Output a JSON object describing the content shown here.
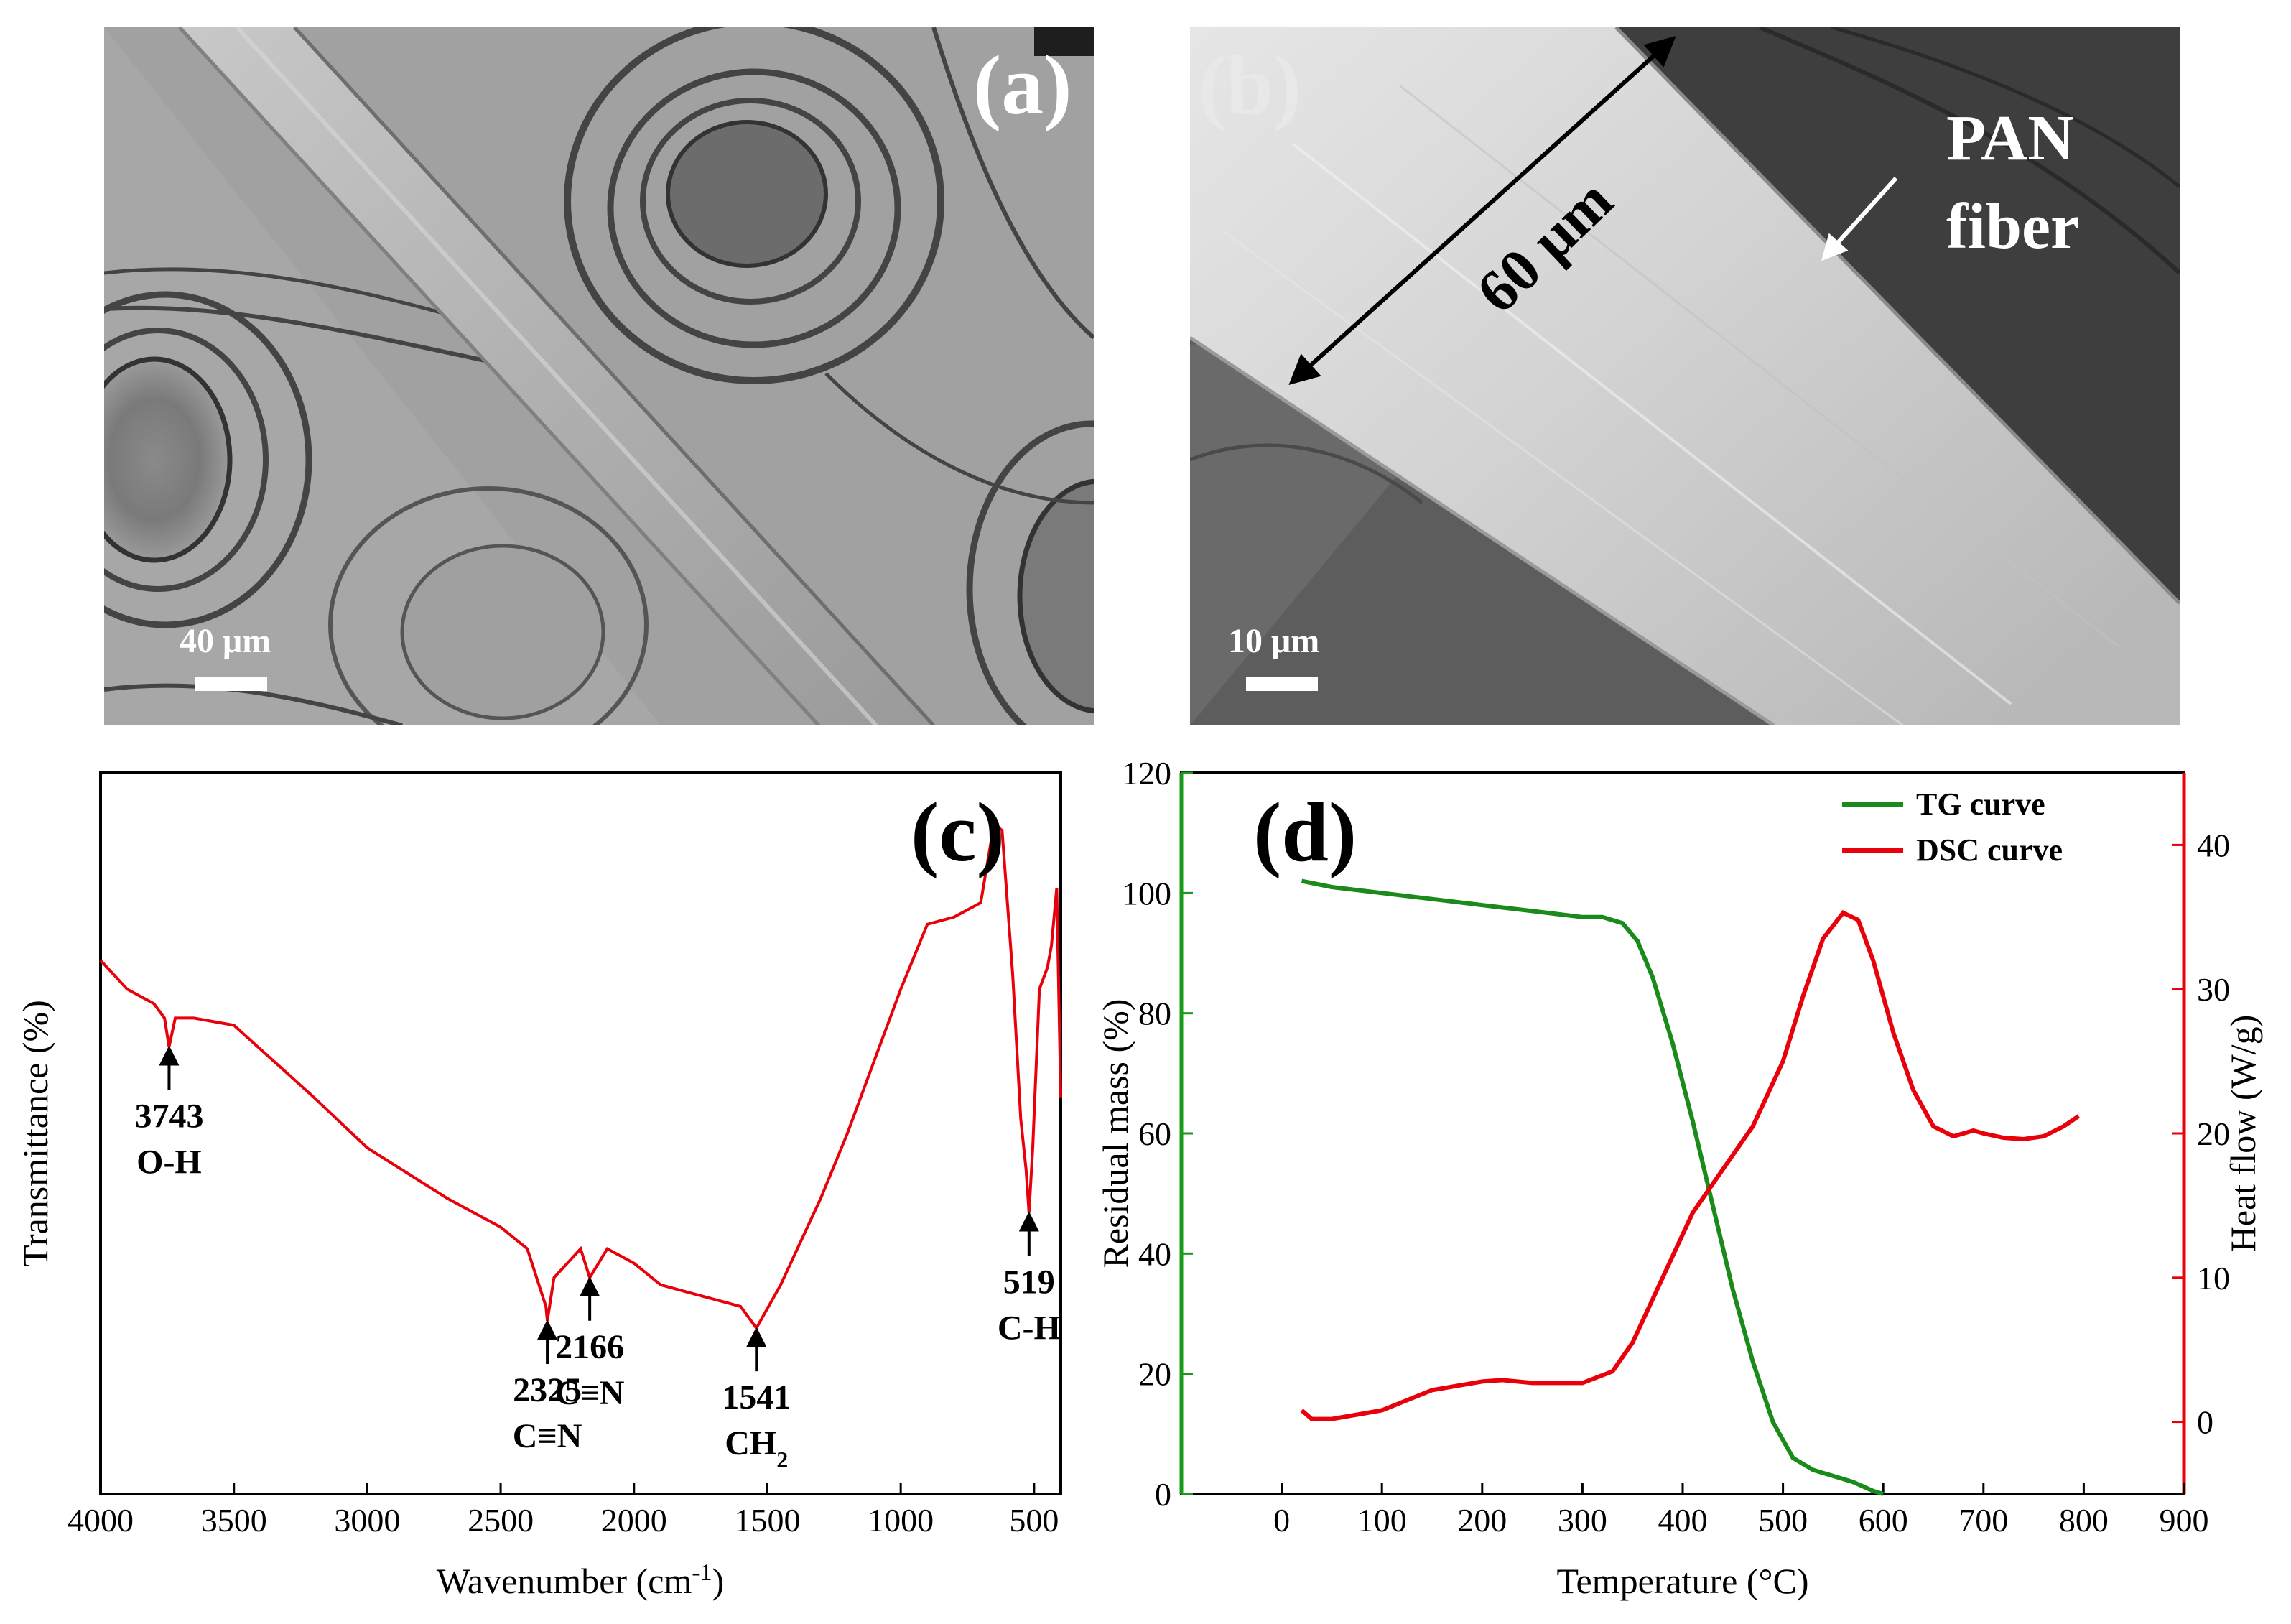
{
  "panels": {
    "a": {
      "label": "(a)",
      "scale_bar": "40 μm"
    },
    "b": {
      "label": "(b)",
      "scale_bar": "10 μm",
      "dimension": "60 μm",
      "annotation_line1": "PAN",
      "annotation_line2": "fiber"
    },
    "c": {
      "label": "(c)"
    },
    "d": {
      "label": "(d)"
    }
  },
  "chart_data": [
    {
      "type": "line",
      "panel": "c",
      "xlabel": "Wavenumber (cm⁻¹)",
      "ylabel": "Transmittance (%)",
      "xlim": [
        4000,
        400
      ],
      "x_reversed": true,
      "y_ticks_shown": false,
      "x_ticks": [
        4000,
        3500,
        3000,
        2500,
        2000,
        1500,
        1000,
        500
      ],
      "series": [
        {
          "color": "#e8000b",
          "x": [
            4000,
            3900,
            3800,
            3760,
            3743,
            3720,
            3650,
            3500,
            3200,
            3000,
            2700,
            2500,
            2400,
            2330,
            2325,
            2300,
            2200,
            2166,
            2100,
            2000,
            1900,
            1800,
            1700,
            1600,
            1541,
            1450,
            1300,
            1200,
            1100,
            1000,
            900,
            800,
            700,
            650,
            620,
            580,
            550,
            530,
            519,
            505,
            480,
            450,
            435,
            425,
            415,
            405,
            400
          ],
          "y": [
            74,
            70,
            68,
            66,
            62,
            66,
            66,
            65,
            55,
            48,
            41,
            37,
            34,
            26,
            24,
            30,
            34,
            30,
            34,
            32,
            29,
            28,
            27,
            26,
            23,
            29,
            41,
            50,
            60,
            70,
            79,
            80,
            82,
            93,
            92,
            72,
            52,
            45,
            39,
            48,
            70,
            73,
            76,
            80,
            84,
            65,
            55
          ]
        }
      ],
      "annotations": [
        {
          "value": "3743",
          "label": "O-H"
        },
        {
          "value": "2325",
          "label": "C≡N"
        },
        {
          "value": "2166",
          "label": "C≡N"
        },
        {
          "value": "1541",
          "label": "CH",
          "sub": "2"
        },
        {
          "value": "519",
          "label": "C-H"
        }
      ]
    },
    {
      "type": "line",
      "panel": "d",
      "xlabel": "Temperature (°C)",
      "ylabel_left": "Residual mass (%)",
      "ylabel_right": "Heat flow (W/g)",
      "xlim": [
        -100,
        900
      ],
      "ylim_left": [
        0,
        120
      ],
      "ylim_right": [
        -5,
        45
      ],
      "x_ticks": [
        0,
        100,
        200,
        300,
        400,
        500,
        600,
        700,
        800,
        900
      ],
      "y_ticks_left": [
        0,
        20,
        40,
        60,
        80,
        100,
        120
      ],
      "y_ticks_right": [
        0,
        10,
        20,
        30,
        40
      ],
      "legend_position": "top-right",
      "colors": {
        "left_axis": "#1a9a1a",
        "right_axis": "#e8000b"
      },
      "series": [
        {
          "name": "TG curve",
          "color": "#1a8a1a",
          "axis": "left",
          "x": [
            20,
            50,
            100,
            150,
            200,
            250,
            300,
            320,
            340,
            355,
            370,
            390,
            410,
            430,
            450,
            470,
            490,
            510,
            530,
            550,
            570,
            590,
            600
          ],
          "y": [
            102,
            101,
            100,
            99,
            98,
            97,
            96,
            96,
            95,
            92,
            86,
            75,
            62,
            48,
            34,
            22,
            12,
            6,
            4,
            3,
            2,
            0.5,
            0
          ]
        },
        {
          "name": "DSC curve",
          "color": "#e8000b",
          "axis": "right",
          "x": [
            20,
            30,
            50,
            100,
            150,
            200,
            220,
            250,
            300,
            330,
            350,
            380,
            410,
            440,
            470,
            500,
            520,
            540,
            560,
            575,
            590,
            610,
            630,
            650,
            670,
            690,
            700,
            720,
            740,
            760,
            780,
            795
          ],
          "y": [
            0.8,
            0.2,
            0.2,
            0.8,
            2.2,
            2.8,
            2.9,
            2.7,
            2.7,
            3.5,
            5.5,
            10,
            14.5,
            17.5,
            20.5,
            25,
            29.5,
            33.5,
            35.3,
            34.8,
            32,
            27,
            23,
            20.5,
            19.8,
            20.2,
            20.0,
            19.7,
            19.6,
            19.8,
            20.5,
            21.2
          ]
        }
      ]
    }
  ]
}
